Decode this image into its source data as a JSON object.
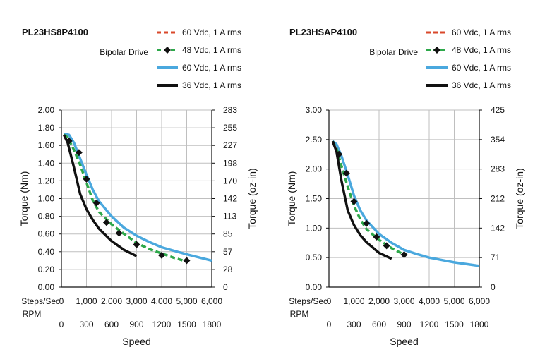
{
  "chart_data": [
    {
      "type": "line",
      "title": "PL23HS8P4100",
      "drive_label": "Bipolar Drive",
      "xlabel": "Speed",
      "ylabel": "Torque (Nm)",
      "ylabel_right": "Torque (oz-in)",
      "x_row1_label": "Steps/Sec",
      "x_row2_label": "RPM",
      "xlim": [
        0,
        6000
      ],
      "ylim": [
        0,
        2.0
      ],
      "yticks": [
        "2.00",
        "1.80",
        "1.60",
        "1.40",
        "1.20",
        "1.00",
        "0.80",
        "0.60",
        "0.40",
        "0.20",
        "0.00"
      ],
      "yticks_right": [
        "283",
        "255",
        "227",
        "198",
        "170",
        "142",
        "113",
        "85",
        "57",
        "28",
        "0"
      ],
      "xticks_steps": [
        "0",
        "1,000",
        "2,000",
        "3,000",
        "4,000",
        "5,000",
        "6,000"
      ],
      "xticks_rpm": [
        "0",
        "300",
        "600",
        "900",
        "1200",
        "1500",
        "1800"
      ],
      "grid": true,
      "legend_position": "top-right",
      "series": [
        {
          "name": "60 Vdc, 1 A rms",
          "color": "#d9482b",
          "style": "dashed",
          "marker": "none",
          "x": [],
          "y": []
        },
        {
          "name": "48 Vdc, 1 A rms",
          "color": "#2da84a",
          "style": "dashed",
          "marker": "diamond",
          "x": [
            100,
            250,
            500,
            750,
            1000,
            1250,
            1500,
            2000,
            2500,
            3000,
            3500,
            4000,
            4500,
            5000
          ],
          "y": [
            1.72,
            1.69,
            1.55,
            1.38,
            1.18,
            0.98,
            0.85,
            0.71,
            0.6,
            0.5,
            0.43,
            0.38,
            0.33,
            0.29
          ],
          "markers_x": [
            300,
            700,
            1000,
            1400,
            1800,
            2300,
            3000,
            4000,
            5000
          ],
          "markers_y": [
            1.65,
            1.52,
            1.22,
            0.95,
            0.73,
            0.61,
            0.48,
            0.36,
            0.3
          ]
        },
        {
          "name": "60 Vdc, 1 A rms",
          "color": "#4aa8de",
          "style": "solid",
          "marker": "none",
          "x": [
            100,
            300,
            500,
            750,
            1000,
            1250,
            1500,
            2000,
            2500,
            3000,
            3500,
            4000,
            5000,
            6000
          ],
          "y": [
            1.73,
            1.72,
            1.63,
            1.45,
            1.27,
            1.1,
            0.97,
            0.8,
            0.67,
            0.58,
            0.51,
            0.45,
            0.37,
            0.3
          ]
        },
        {
          "name": "36 Vdc, 1 A rms",
          "color": "#111111",
          "style": "solid",
          "marker": "none",
          "x": [
            100,
            250,
            500,
            750,
            1000,
            1250,
            1500,
            2000,
            2500,
            3000
          ],
          "y": [
            1.72,
            1.63,
            1.35,
            1.05,
            0.88,
            0.76,
            0.66,
            0.52,
            0.42,
            0.35
          ]
        }
      ]
    },
    {
      "type": "line",
      "title": "PL23HSAP4100",
      "drive_label": "Bipolar Drive",
      "xlabel": "Speed",
      "ylabel": "Torque (Nm)",
      "ylabel_right": "Torque (oz-in)",
      "x_row1_label": "Steps/Sec",
      "x_row2_label": "RPM",
      "xlim": [
        0,
        6000
      ],
      "ylim": [
        0,
        3.0
      ],
      "yticks": [
        "3.00",
        "2.50",
        "2.00",
        "1.50",
        "1.00",
        "0.50",
        "0.00"
      ],
      "yticks_right": [
        "425",
        "354",
        "283",
        "212",
        "142",
        "71",
        "0"
      ],
      "xticks_steps": [
        "0",
        "1,000",
        "2,000",
        "3,000",
        "4,000",
        "5,000",
        "6,000"
      ],
      "xticks_rpm": [
        "0",
        "300",
        "600",
        "900",
        "1200",
        "1500",
        "1800"
      ],
      "grid": true,
      "legend_position": "top-right",
      "series": [
        {
          "name": "60 Vdc, 1 A rms",
          "color": "#d9482b",
          "style": "dashed",
          "marker": "none",
          "x": [],
          "y": []
        },
        {
          "name": "48 Vdc, 1 A rms",
          "color": "#2da84a",
          "style": "dashed",
          "marker": "diamond",
          "x": [
            150,
            300,
            500,
            750,
            1000,
            1250,
            1500,
            2000,
            2500,
            3000
          ],
          "y": [
            2.47,
            2.35,
            2.05,
            1.7,
            1.38,
            1.15,
            0.98,
            0.8,
            0.66,
            0.55
          ],
          "markers_x": [
            400,
            700,
            1000,
            1500,
            1900,
            2300,
            3000
          ],
          "markers_y": [
            2.25,
            1.93,
            1.45,
            1.08,
            0.85,
            0.7,
            0.55
          ]
        },
        {
          "name": "60 Vdc, 1 A rms",
          "color": "#4aa8de",
          "style": "solid",
          "marker": "none",
          "x": [
            150,
            300,
            500,
            750,
            1000,
            1250,
            1500,
            2000,
            2500,
            3000,
            3500,
            4000,
            5000,
            6000
          ],
          "y": [
            2.47,
            2.42,
            2.22,
            1.9,
            1.55,
            1.3,
            1.13,
            0.9,
            0.75,
            0.63,
            0.56,
            0.5,
            0.42,
            0.36
          ]
        },
        {
          "name": "36 Vdc, 1 A rms",
          "color": "#111111",
          "style": "solid",
          "marker": "none",
          "x": [
            150,
            300,
            500,
            750,
            1000,
            1250,
            1500,
            2000,
            2500
          ],
          "y": [
            2.47,
            2.3,
            1.8,
            1.3,
            1.05,
            0.88,
            0.76,
            0.58,
            0.48
          ]
        }
      ]
    }
  ]
}
